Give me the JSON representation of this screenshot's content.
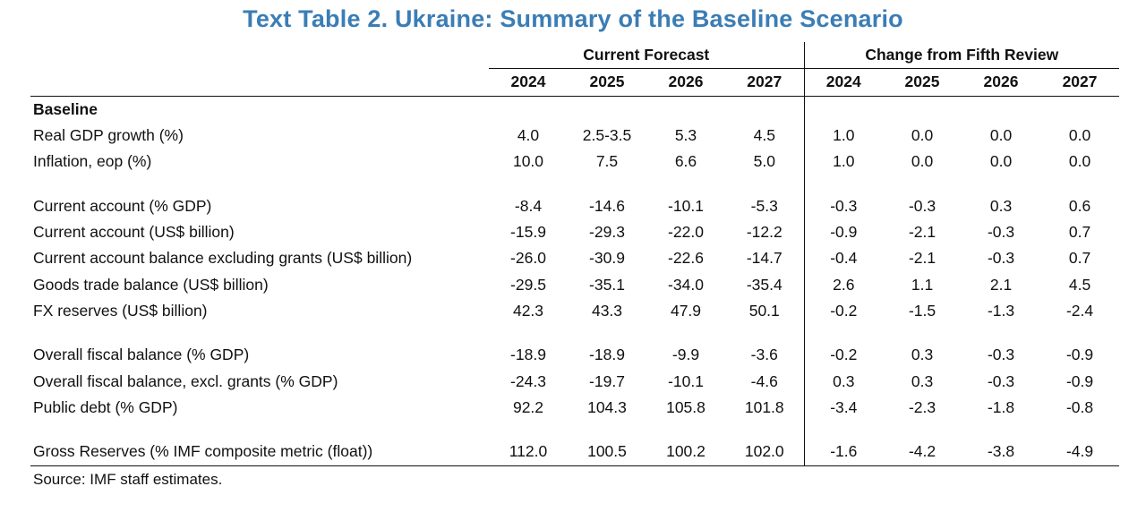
{
  "title": "Text Table 2. Ukraine: Summary of the Baseline Scenario",
  "colors": {
    "title_accent": "#3b7db5",
    "rule": "#111111"
  },
  "table": {
    "group_headers": [
      "Current Forecast",
      "Change from Fifth Review"
    ],
    "years": [
      "2024",
      "2025",
      "2026",
      "2027"
    ],
    "rows": [
      {
        "type": "section",
        "label": "Baseline"
      },
      {
        "type": "data",
        "label": "Real GDP growth (%)",
        "forecast": [
          "4.0",
          "2.5-3.5",
          "5.3",
          "4.5"
        ],
        "change": [
          "1.0",
          "0.0",
          "0.0",
          "0.0"
        ]
      },
      {
        "type": "data",
        "label": "Inflation, eop (%)",
        "forecast": [
          "10.0",
          "7.5",
          "6.6",
          "5.0"
        ],
        "change": [
          "1.0",
          "0.0",
          "0.0",
          "0.0"
        ]
      },
      {
        "type": "spacer"
      },
      {
        "type": "data",
        "label": "Current account (% GDP)",
        "forecast": [
          "-8.4",
          "-14.6",
          "-10.1",
          "-5.3"
        ],
        "change": [
          "-0.3",
          "-0.3",
          "0.3",
          "0.6"
        ]
      },
      {
        "type": "data",
        "label": "Current account (US$ billion)",
        "forecast": [
          "-15.9",
          "-29.3",
          "-22.0",
          "-12.2"
        ],
        "change": [
          "-0.9",
          "-2.1",
          "-0.3",
          "0.7"
        ]
      },
      {
        "type": "data",
        "label": "Current account balance excluding grants (US$ billion)",
        "forecast": [
          "-26.0",
          "-30.9",
          "-22.6",
          "-14.7"
        ],
        "change": [
          "-0.4",
          "-2.1",
          "-0.3",
          "0.7"
        ]
      },
      {
        "type": "data",
        "label": "Goods trade balance (US$ billion)",
        "forecast": [
          "-29.5",
          "-35.1",
          "-34.0",
          "-35.4"
        ],
        "change": [
          "2.6",
          "1.1",
          "2.1",
          "4.5"
        ]
      },
      {
        "type": "data",
        "label": "FX reserves (US$ billion)",
        "forecast": [
          "42.3",
          "43.3",
          "47.9",
          "50.1"
        ],
        "change": [
          "-0.2",
          "-1.5",
          "-1.3",
          "-2.4"
        ]
      },
      {
        "type": "spacer"
      },
      {
        "type": "data",
        "label": "Overall fiscal balance (% GDP)",
        "forecast": [
          "-18.9",
          "-18.9",
          "-9.9",
          "-3.6"
        ],
        "change": [
          "-0.2",
          "0.3",
          "-0.3",
          "-0.9"
        ]
      },
      {
        "type": "data",
        "label": "Overall fiscal balance, excl. grants (% GDP)",
        "forecast": [
          "-24.3",
          "-19.7",
          "-10.1",
          "-4.6"
        ],
        "change": [
          "0.3",
          "0.3",
          "-0.3",
          "-0.9"
        ]
      },
      {
        "type": "data",
        "label": "Public debt (% GDP)",
        "forecast": [
          "92.2",
          "104.3",
          "105.8",
          "101.8"
        ],
        "change": [
          "-3.4",
          "-2.3",
          "-1.8",
          "-0.8"
        ]
      },
      {
        "type": "spacer"
      },
      {
        "type": "data",
        "label": "Gross Reserves (% IMF composite metric (float))",
        "forecast": [
          "112.0",
          "100.5",
          "100.2",
          "102.0"
        ],
        "change": [
          "-1.6",
          "-4.2",
          "-3.8",
          "-4.9"
        ]
      }
    ],
    "source": "Source: IMF staff estimates."
  }
}
